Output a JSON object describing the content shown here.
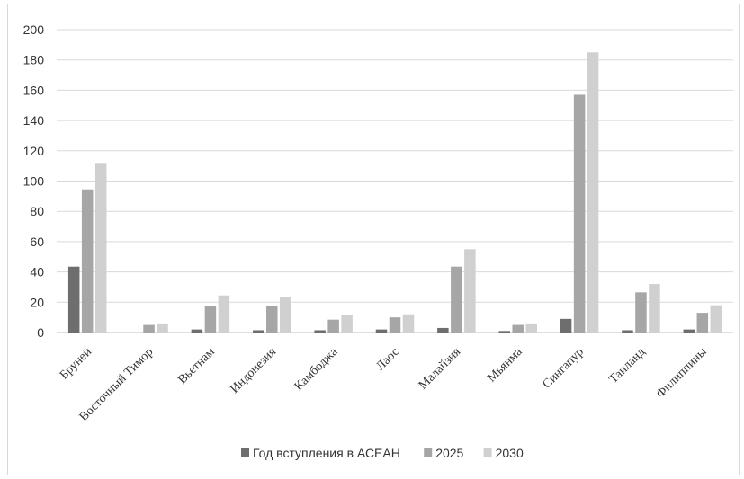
{
  "chart_data": {
    "type": "bar",
    "categories": [
      "Бруней",
      "Восточный Тимор",
      "Вьетнам",
      "Индонезия",
      "Камбоджа",
      "Лаос",
      "Малайзия",
      "Мьянма",
      "Сингапур",
      "Таиланд",
      "Филиппины"
    ],
    "series": [
      {
        "name": "Год вступления в АСЕАН",
        "color": "#6e6e6e",
        "values": [
          43.5,
          0,
          2,
          1.5,
          1.5,
          2,
          3,
          1,
          9,
          1.5,
          2
        ]
      },
      {
        "name": "2025",
        "color": "#a6a6a6",
        "values": [
          94.5,
          5,
          17.5,
          17.5,
          8.5,
          10,
          43.5,
          5,
          157,
          26.5,
          13
        ]
      },
      {
        "name": "2030",
        "color": "#d0d0d0",
        "values": [
          112,
          6,
          24.5,
          23.5,
          11.5,
          12,
          55,
          6,
          185,
          32,
          18
        ]
      }
    ],
    "yticks": [
      "0",
      "20",
      "40",
      "60",
      "80",
      "100",
      "120",
      "140",
      "160",
      "180",
      "200"
    ],
    "ylim": [
      0,
      200
    ],
    "grid": true,
    "legend_position": "bottom"
  }
}
